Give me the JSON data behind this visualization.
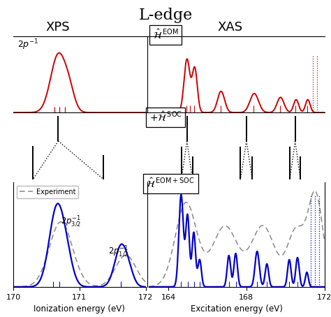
{
  "title": "L-edge",
  "xps_label": "XPS",
  "xas_label": "XAS",
  "ionization_xlabel": "Ionization energy (eV)",
  "excitation_xlabel": "Excitation energy (eV)",
  "bg_color": "#ffffff",
  "red_color": "#cc0000",
  "blue_color": "#0000cc",
  "gray_color": "#888888"
}
